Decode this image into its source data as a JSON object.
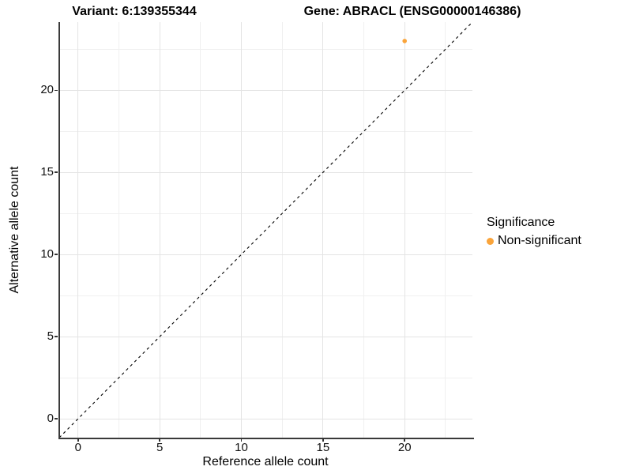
{
  "chart_data": {
    "type": "scatter",
    "title_variant": "Variant: 6:139355344",
    "title_gene": "Gene: ABRACL (ENSG00000146386)",
    "xlabel": "Reference allele count",
    "ylabel": "Alternative allele count",
    "xlim": [
      -1.15,
      24.15
    ],
    "ylim": [
      -1.15,
      24.15
    ],
    "x_major_ticks": [
      0,
      5,
      10,
      15,
      20
    ],
    "x_minor_ticks": [
      2.5,
      7.5,
      12.5,
      17.5,
      22.5
    ],
    "y_major_ticks": [
      0,
      5,
      10,
      15,
      20
    ],
    "y_minor_ticks": [
      2.5,
      7.5,
      12.5,
      17.5,
      22.5
    ],
    "grid": true,
    "points": [
      {
        "x": 20,
        "y": 23,
        "series": "Non-significant"
      }
    ],
    "point_radius": 2.8,
    "reference_line": {
      "kind": "identity",
      "slope": 1,
      "intercept": 0,
      "style": "dashed",
      "color": "#000000"
    },
    "legend": {
      "title": "Significance",
      "position": "right",
      "items": [
        {
          "label": "Non-significant",
          "color": "#FAA43A"
        }
      ]
    },
    "colors": {
      "point": "#FAA43A",
      "grid_major": "#E4E4E4",
      "grid_minor": "#F0F0F0",
      "axis_line": "#3a3a3a",
      "tick": "#333333"
    }
  }
}
